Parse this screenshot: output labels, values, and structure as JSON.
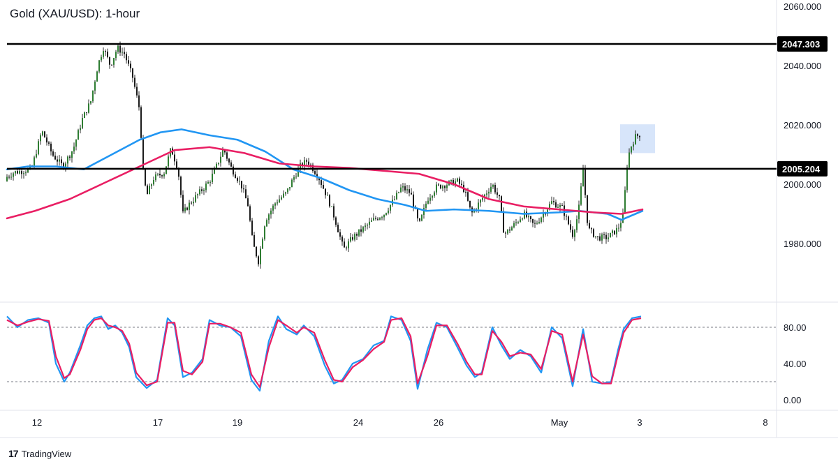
{
  "header": {
    "title": "Gold (XAU/USD): 1-hour"
  },
  "brand": {
    "logo": "17",
    "name": "TradingView"
  },
  "colors": {
    "candle_up": "#26a69a",
    "candle_body": "#2e7d32",
    "ma_fast": "#2196f3",
    "ma_slow": "#e91e63",
    "level_line": "#000000",
    "highlight": "#c9dcf8",
    "stoch_k": "#2196f3",
    "stoch_d": "#e91e63"
  },
  "chart_data": [
    {
      "type": "candlestick",
      "name": "price-panel",
      "title": "Gold (XAU/USD): 1-hour",
      "y_ticks": [
        "2060.000",
        "2040.000",
        "2020.000",
        "2000.000",
        "1980.000"
      ],
      "y_tick_values": [
        2060,
        2040,
        2020,
        2000,
        1980
      ],
      "ylim": [
        1960,
        2060
      ],
      "x_ticks": [
        "12",
        "17",
        "19",
        "24",
        "26",
        "May",
        "3",
        "8"
      ],
      "levels": [
        {
          "value": 2047.303,
          "label": "2047.303"
        },
        {
          "value": 2005.204,
          "label": "2005.204"
        }
      ],
      "price_path": [
        [
          0,
          2001
        ],
        [
          20,
          2004
        ],
        [
          45,
          2005
        ],
        [
          60,
          2018
        ],
        [
          75,
          2010
        ],
        [
          90,
          2006
        ],
        [
          105,
          2012
        ],
        [
          118,
          2022
        ],
        [
          130,
          2028
        ],
        [
          140,
          2040
        ],
        [
          148,
          2046
        ],
        [
          158,
          2040
        ],
        [
          168,
          2046
        ],
        [
          178,
          2044
        ],
        [
          190,
          2036
        ],
        [
          200,
          2025
        ],
        [
          205,
          2004
        ],
        [
          210,
          1996
        ],
        [
          220,
          2002
        ],
        [
          235,
          2004
        ],
        [
          245,
          2012
        ],
        [
          255,
          2005
        ],
        [
          262,
          1990
        ],
        [
          270,
          1993
        ],
        [
          285,
          1997
        ],
        [
          300,
          2001
        ],
        [
          310,
          2006
        ],
        [
          320,
          2012
        ],
        [
          330,
          2006
        ],
        [
          345,
          2000
        ],
        [
          355,
          1993
        ],
        [
          362,
          1980
        ],
        [
          370,
          1974
        ],
        [
          380,
          1988
        ],
        [
          395,
          1994
        ],
        [
          410,
          1997
        ],
        [
          420,
          2002
        ],
        [
          430,
          2006
        ],
        [
          440,
          2008
        ],
        [
          455,
          2003
        ],
        [
          470,
          1995
        ],
        [
          480,
          1988
        ],
        [
          492,
          1978
        ],
        [
          505,
          1982
        ],
        [
          520,
          1985
        ],
        [
          535,
          1988
        ],
        [
          550,
          1990
        ],
        [
          565,
          1995
        ],
        [
          575,
          1999
        ],
        [
          588,
          1997
        ],
        [
          600,
          1986
        ],
        [
          612,
          1995
        ],
        [
          625,
          1999
        ],
        [
          640,
          2000
        ],
        [
          655,
          2001
        ],
        [
          665,
          1998
        ],
        [
          675,
          1990
        ],
        [
          690,
          1995
        ],
        [
          705,
          2000
        ],
        [
          715,
          1995
        ],
        [
          722,
          1983
        ],
        [
          735,
          1986
        ],
        [
          750,
          1990
        ],
        [
          765,
          1986
        ],
        [
          778,
          1990
        ],
        [
          790,
          1994
        ],
        [
          805,
          1992
        ],
        [
          820,
          1983
        ],
        [
          828,
          1990
        ],
        [
          835,
          2005
        ],
        [
          842,
          1985
        ],
        [
          855,
          1982
        ],
        [
          870,
          1982
        ],
        [
          885,
          1985
        ],
        [
          893,
          1990
        ],
        [
          897,
          2005
        ],
        [
          902,
          2012
        ],
        [
          910,
          2016
        ],
        [
          918,
          2017
        ]
      ],
      "highlight_box": {
        "x0": 888,
        "x1": 938,
        "y0": 2010.5,
        "y1": 2020.2
      },
      "series": [
        {
          "name": "",
          "color": "#2196f3",
          "points": [
            [
              10,
              2005
            ],
            [
              40,
              2006
            ],
            [
              80,
              2006
            ],
            [
              120,
              2005
            ],
            [
              160,
              2010
            ],
            [
              200,
              2015
            ],
            [
              230,
              2017.5
            ],
            [
              260,
              2018.5
            ],
            [
              300,
              2016.5
            ],
            [
              340,
              2015
            ],
            [
              380,
              2011
            ],
            [
              420,
              2005
            ],
            [
              460,
              2002
            ],
            [
              500,
              1998
            ],
            [
              540,
              1995
            ],
            [
              580,
              1993
            ],
            [
              610,
              1991
            ],
            [
              650,
              1991.5
            ],
            [
              700,
              1991
            ],
            [
              750,
              1990
            ],
            [
              800,
              1990.5
            ],
            [
              830,
              1991
            ],
            [
              870,
              1990
            ],
            [
              890,
              1988
            ],
            [
              920,
              1991
            ]
          ]
        },
        {
          "name": "",
          "color": "#e91e63",
          "points": [
            [
              10,
              1988.5
            ],
            [
              50,
              1991
            ],
            [
              100,
              1995
            ],
            [
              150,
              2000.5
            ],
            [
              200,
              2006
            ],
            [
              250,
              2011.5
            ],
            [
              300,
              2012.5
            ],
            [
              350,
              2010.5
            ],
            [
              400,
              2007
            ],
            [
              450,
              2006
            ],
            [
              500,
              2005.5
            ],
            [
              550,
              2004.5
            ],
            [
              600,
              2003.5
            ],
            [
              650,
              2000
            ],
            [
              700,
              1995
            ],
            [
              750,
              1992.5
            ],
            [
              800,
              1991.5
            ],
            [
              850,
              1990.5
            ],
            [
              890,
              1990
            ],
            [
              920,
              1991.5
            ]
          ]
        }
      ]
    },
    {
      "type": "line",
      "name": "stochastic-panel",
      "y_ticks": [
        "80.00",
        "40.00",
        "0.00"
      ],
      "y_tick_values": [
        80,
        40,
        0
      ],
      "ylim": [
        0,
        100
      ],
      "reference_lines": [
        80,
        20
      ],
      "series": [
        {
          "name": "",
          "color": "#2196f3",
          "points": [
            [
              10,
              92
            ],
            [
              25,
              80
            ],
            [
              40,
              88
            ],
            [
              55,
              90
            ],
            [
              70,
              85
            ],
            [
              80,
              40
            ],
            [
              92,
              20
            ],
            [
              100,
              30
            ],
            [
              115,
              60
            ],
            [
              125,
              82
            ],
            [
              135,
              90
            ],
            [
              145,
              92
            ],
            [
              155,
              78
            ],
            [
              165,
              82
            ],
            [
              175,
              74
            ],
            [
              185,
              58
            ],
            [
              195,
              25
            ],
            [
              210,
              13
            ],
            [
              225,
              22
            ],
            [
              240,
              90
            ],
            [
              250,
              82
            ],
            [
              262,
              25
            ],
            [
              275,
              30
            ],
            [
              290,
              45
            ],
            [
              300,
              88
            ],
            [
              315,
              82
            ],
            [
              330,
              80
            ],
            [
              345,
              70
            ],
            [
              360,
              22
            ],
            [
              372,
              10
            ],
            [
              385,
              65
            ],
            [
              398,
              92
            ],
            [
              410,
              78
            ],
            [
              425,
              72
            ],
            [
              435,
              82
            ],
            [
              450,
              70
            ],
            [
              465,
              38
            ],
            [
              478,
              18
            ],
            [
              490,
              22
            ],
            [
              505,
              40
            ],
            [
              520,
              45
            ],
            [
              535,
              60
            ],
            [
              550,
              65
            ],
            [
              560,
              92
            ],
            [
              575,
              88
            ],
            [
              588,
              65
            ],
            [
              598,
              12
            ],
            [
              612,
              55
            ],
            [
              625,
              85
            ],
            [
              640,
              80
            ],
            [
              655,
              58
            ],
            [
              668,
              38
            ],
            [
              680,
              25
            ],
            [
              690,
              30
            ],
            [
              705,
              80
            ],
            [
              718,
              60
            ],
            [
              730,
              45
            ],
            [
              745,
              55
            ],
            [
              760,
              48
            ],
            [
              775,
              30
            ],
            [
              790,
              80
            ],
            [
              805,
              68
            ],
            [
              820,
              15
            ],
            [
              835,
              78
            ],
            [
              848,
              20
            ],
            [
              862,
              18
            ],
            [
              875,
              20
            ],
            [
              885,
              55
            ],
            [
              893,
              78
            ],
            [
              905,
              90
            ],
            [
              918,
              92
            ]
          ]
        },
        {
          "name": "",
          "color": "#e91e63",
          "points": [
            [
              10,
              88
            ],
            [
              25,
              82
            ],
            [
              40,
              86
            ],
            [
              55,
              89
            ],
            [
              70,
              87
            ],
            [
              80,
              48
            ],
            [
              92,
              24
            ],
            [
              100,
              28
            ],
            [
              115,
              55
            ],
            [
              125,
              78
            ],
            [
              135,
              88
            ],
            [
              145,
              90
            ],
            [
              155,
              82
            ],
            [
              165,
              80
            ],
            [
              175,
              76
            ],
            [
              185,
              62
            ],
            [
              195,
              30
            ],
            [
              210,
              16
            ],
            [
              225,
              20
            ],
            [
              240,
              85
            ],
            [
              250,
              85
            ],
            [
              262,
              32
            ],
            [
              275,
              28
            ],
            [
              290,
              42
            ],
            [
              300,
              84
            ],
            [
              315,
              84
            ],
            [
              330,
              80
            ],
            [
              345,
              74
            ],
            [
              360,
              28
            ],
            [
              372,
              14
            ],
            [
              385,
              58
            ],
            [
              398,
              88
            ],
            [
              410,
              82
            ],
            [
              425,
              74
            ],
            [
              435,
              80
            ],
            [
              450,
              74
            ],
            [
              465,
              44
            ],
            [
              478,
              22
            ],
            [
              490,
              20
            ],
            [
              505,
              36
            ],
            [
              520,
              44
            ],
            [
              535,
              56
            ],
            [
              550,
              64
            ],
            [
              560,
              88
            ],
            [
              575,
              90
            ],
            [
              588,
              70
            ],
            [
              598,
              18
            ],
            [
              612,
              48
            ],
            [
              625,
              82
            ],
            [
              640,
              82
            ],
            [
              655,
              62
            ],
            [
              668,
              42
            ],
            [
              680,
              28
            ],
            [
              690,
              28
            ],
            [
              705,
              76
            ],
            [
              718,
              64
            ],
            [
              730,
              48
            ],
            [
              745,
              52
            ],
            [
              760,
              50
            ],
            [
              775,
              34
            ],
            [
              790,
              76
            ],
            [
              805,
              72
            ],
            [
              820,
              20
            ],
            [
              835,
              72
            ],
            [
              848,
              26
            ],
            [
              862,
              18
            ],
            [
              875,
              18
            ],
            [
              885,
              50
            ],
            [
              893,
              74
            ],
            [
              905,
              88
            ],
            [
              918,
              90
            ]
          ]
        }
      ]
    }
  ]
}
